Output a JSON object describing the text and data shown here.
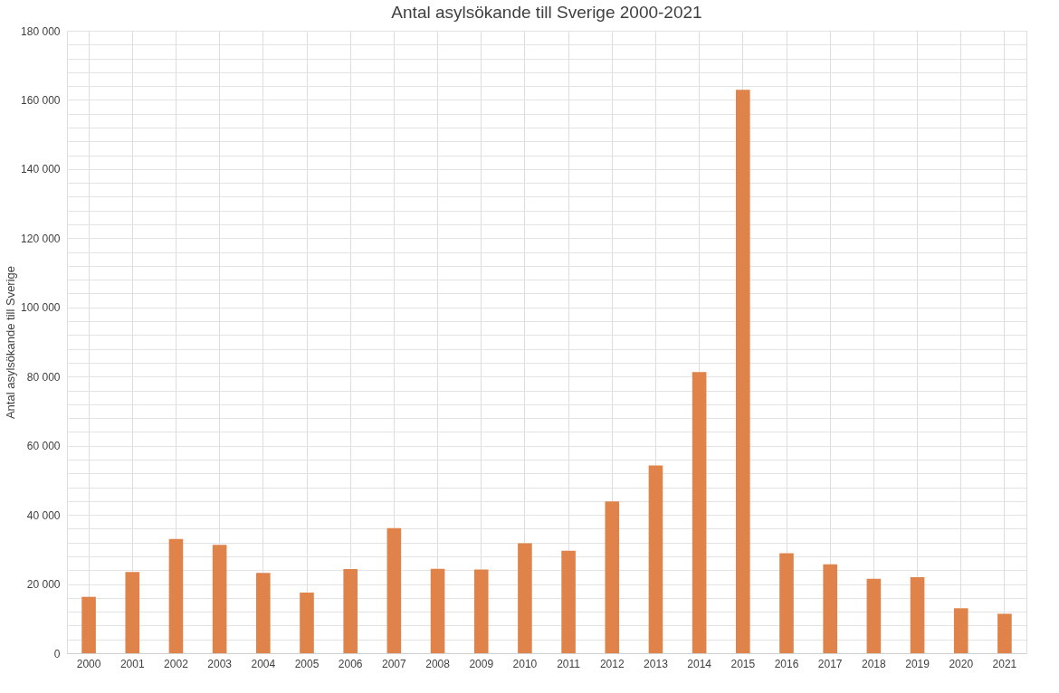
{
  "chart_data": {
    "type": "bar",
    "title": "Antal asylsökande till Sverige 2000-2021",
    "ylabel": "Antal asylsökande till Sverige",
    "categories": [
      "2000",
      "2001",
      "2002",
      "2003",
      "2004",
      "2005",
      "2006",
      "2007",
      "2008",
      "2009",
      "2010",
      "2011",
      "2012",
      "2013",
      "2014",
      "2015",
      "2016",
      "2017",
      "2018",
      "2019",
      "2020",
      "2021"
    ],
    "values": [
      16300,
      23500,
      33000,
      31300,
      23200,
      17500,
      24300,
      36200,
      24400,
      24200,
      31800,
      29600,
      43900,
      54300,
      81300,
      162900,
      28900,
      25700,
      21500,
      22000,
      13000,
      11400
    ],
    "color": "#e0834a",
    "ylim": [
      0,
      180000
    ],
    "yticks": [
      {
        "value": 0,
        "label": "0"
      },
      {
        "value": 4000,
        "label": null
      },
      {
        "value": 8000,
        "label": null
      },
      {
        "value": 12000,
        "label": null
      },
      {
        "value": 16000,
        "label": null
      },
      {
        "value": 20000,
        "label": "20 000"
      },
      {
        "value": 24000,
        "label": null
      },
      {
        "value": 28000,
        "label": null
      },
      {
        "value": 32000,
        "label": null
      },
      {
        "value": 36000,
        "label": null
      },
      {
        "value": 40000,
        "label": "40 000"
      },
      {
        "value": 44000,
        "label": null
      },
      {
        "value": 48000,
        "label": null
      },
      {
        "value": 52000,
        "label": null
      },
      {
        "value": 56000,
        "label": null
      },
      {
        "value": 60000,
        "label": "60 000"
      },
      {
        "value": 64000,
        "label": null
      },
      {
        "value": 68000,
        "label": null
      },
      {
        "value": 72000,
        "label": null
      },
      {
        "value": 76000,
        "label": null
      },
      {
        "value": 80000,
        "label": "80 000"
      },
      {
        "value": 84000,
        "label": null
      },
      {
        "value": 88000,
        "label": null
      },
      {
        "value": 92000,
        "label": null
      },
      {
        "value": 96000,
        "label": null
      },
      {
        "value": 100000,
        "label": "100 000"
      },
      {
        "value": 104000,
        "label": null
      },
      {
        "value": 108000,
        "label": null
      },
      {
        "value": 112000,
        "label": null
      },
      {
        "value": 116000,
        "label": null
      },
      {
        "value": 120000,
        "label": "120 000"
      },
      {
        "value": 124000,
        "label": null
      },
      {
        "value": 128000,
        "label": null
      },
      {
        "value": 132000,
        "label": null
      },
      {
        "value": 136000,
        "label": null
      },
      {
        "value": 140000,
        "label": "140 000"
      },
      {
        "value": 144000,
        "label": null
      },
      {
        "value": 148000,
        "label": null
      },
      {
        "value": 152000,
        "label": null
      },
      {
        "value": 156000,
        "label": null
      },
      {
        "value": 160000,
        "label": "160 000"
      },
      {
        "value": 164000,
        "label": null
      },
      {
        "value": 168000,
        "label": null
      },
      {
        "value": 172000,
        "label": null
      },
      {
        "value": 176000,
        "label": null
      },
      {
        "value": 180000,
        "label": "180 000"
      }
    ],
    "grid": true
  }
}
